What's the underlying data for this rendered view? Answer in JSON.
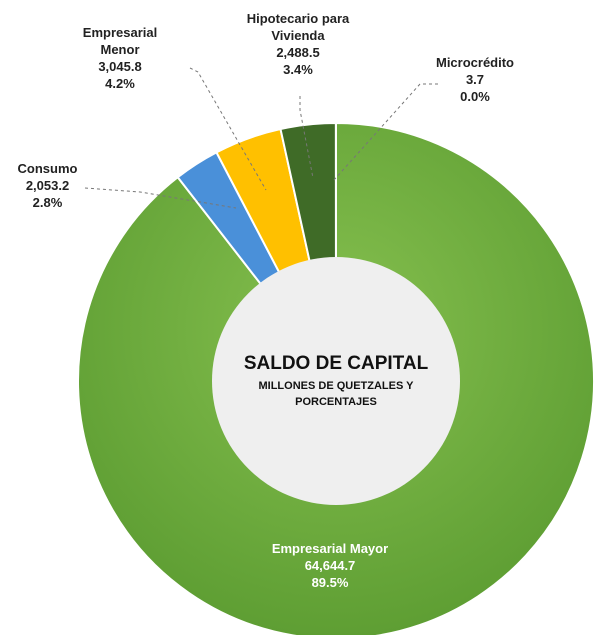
{
  "chart_data": {
    "type": "pie",
    "center_title": "SALDO DE CAPITAL",
    "center_subtitle": "MILLONES DE QUETZALES Y PORCENTAJES",
    "categories": [
      "Empresarial Mayor",
      "Consumo",
      "Empresarial Menor",
      "Hipotecario para Vivienda",
      "Microcrédito"
    ],
    "values": [
      64644.7,
      2053.2,
      3045.8,
      2488.5,
      3.7
    ],
    "value_labels": [
      "64,644.7",
      "2,053.2",
      "3,045.8",
      "2,488.5",
      "3.7"
    ],
    "percentages": [
      89.5,
      2.8,
      4.2,
      3.4,
      0.0
    ],
    "percentage_labels": [
      "89.5%",
      "2.8%",
      "4.2%",
      "3.4%",
      "0.0%"
    ],
    "colors": [
      "#6eaa3f",
      "#4a90d9",
      "#ffc000",
      "#3f6b27",
      "#2e5a1e"
    ]
  }
}
